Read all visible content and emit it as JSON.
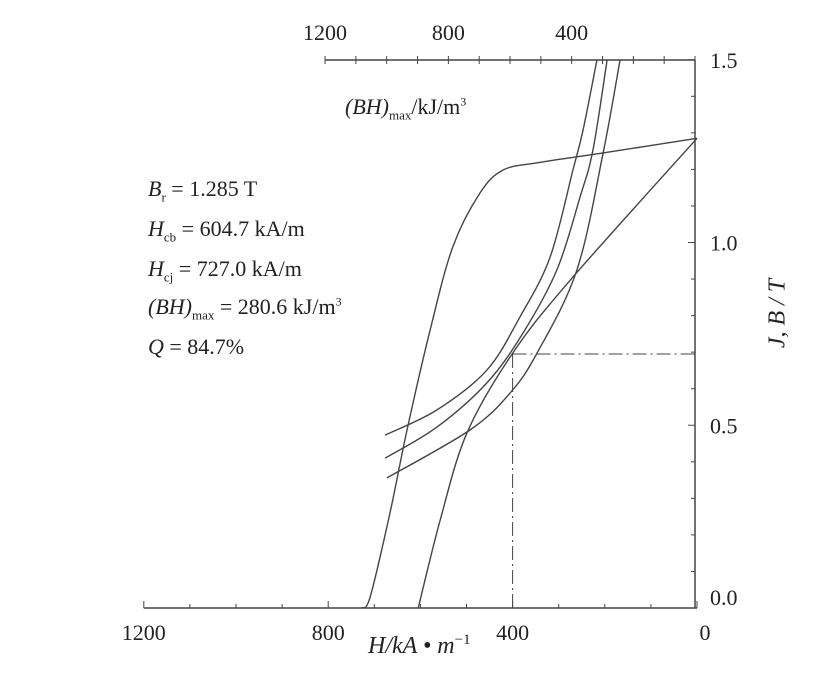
{
  "chart_data": {
    "type": "line",
    "title": "",
    "xlabel": "H/kA • m",
    "xlabel_exponent": "−1",
    "ylabel": "J, B / T",
    "xlim": [
      1200,
      0
    ],
    "ylim": [
      0,
      1.5
    ],
    "x_ticks": [
      "1200",
      "800",
      "400",
      "0"
    ],
    "y_ticks": [
      "0.0",
      "0.5",
      "1.0",
      "1.5"
    ],
    "top_axis": {
      "label_main": "(BH)",
      "label_sub": "max",
      "label_unit": "/kJ/m",
      "label_exp": "3",
      "range": [
        1200,
        0
      ],
      "ticks": [
        "1200",
        "800",
        "400"
      ]
    },
    "grid": false,
    "line_color": "#444444",
    "series": [
      {
        "x": [
          0,
          204,
          347,
          421,
          471,
          530,
          579,
          629,
          666,
          709,
          727
        ],
        "y": [
          1.285,
          1.245,
          1.218,
          1.198,
          1.135,
          0.987,
          0.76,
          0.487,
          0.26,
          0.03,
          0
        ]
      },
      {
        "x": [
          0,
          275,
          401,
          499,
          557,
          604.7
        ],
        "y": [
          1.285,
          0.897,
          0.695,
          0.479,
          0.241,
          0
        ]
      }
    ],
    "bh_series": [
      {
        "x": [
          1005,
          837,
          675,
          568,
          470,
          396,
          363,
          318
        ],
        "y": [
          0.473,
          0.542,
          0.651,
          0.796,
          0.96,
          1.198,
          1.308,
          1.5
        ]
      },
      {
        "x": [
          1005,
          837,
          675,
          558,
          448,
          373,
          331,
          285
        ],
        "y": [
          0.41,
          0.495,
          0.616,
          0.752,
          0.925,
          1.124,
          1.253,
          1.5
        ]
      },
      {
        "x": [
          999,
          730,
          600,
          512,
          383,
          298,
          243
        ],
        "y": [
          0.356,
          0.487,
          0.588,
          0.698,
          0.925,
          1.245,
          1.5
        ]
      }
    ],
    "bhmax_point": {
      "H": 400,
      "B": 0.695
    },
    "annotations": {
      "br": {
        "sym": "B",
        "sub": "r",
        "rest": " = 1.285 T"
      },
      "hcb": {
        "sym": "H",
        "sub": "cb",
        "rest": " = 604.7 kA/m"
      },
      "hcj": {
        "sym": "H",
        "sub": "cj",
        "rest": " = 727.0 kA/m"
      },
      "bhmax": {
        "sym": "(BH)",
        "sub": "max",
        "rest": " = 280.6 kJ/m",
        "exp": "3"
      },
      "q": {
        "sym": "Q",
        "rest": " = 84.7%"
      }
    }
  }
}
